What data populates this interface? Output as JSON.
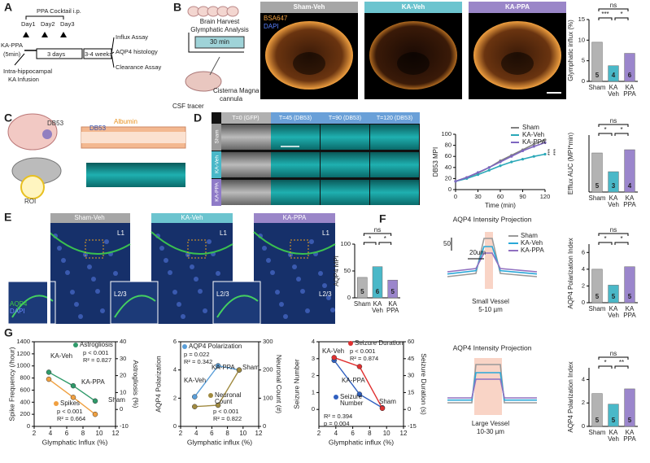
{
  "panels": {
    "letters": [
      "A",
      "B",
      "C",
      "D",
      "E",
      "F",
      "G"
    ],
    "a": [
      "PPA Cocktail i.p.",
      "Day1",
      "Day2",
      "Day3",
      "KA-PPA",
      "(5min)",
      "3 days",
      "3-4 weeks",
      "Intra-hippocampal",
      "KA Infusion",
      "Influx Assay",
      "AQP4 histology",
      "Clearance Assay"
    ],
    "b": [
      "Brain Harvest",
      "Glymphatic Analysis",
      "30 min",
      "Cisterna Magna",
      "cannula",
      "CSF tracer",
      "Sham-Veh",
      "KA-Veh",
      "KA-PPA",
      "BSA647",
      "DAPI"
    ],
    "c": [
      "DB53",
      "DB53",
      "Albumin",
      "ROI"
    ],
    "d": [
      "T=0 (GFP)",
      "T=45 (DB53)",
      "T=90 (DB53)",
      "T=120 (DB53)",
      "Sham",
      "KA-Veh",
      "KA-PPA"
    ],
    "e": [
      "Sham-Veh",
      "KA-Veh",
      "KA-PPA",
      "L1",
      "L1",
      "L1",
      "L2/3",
      "L2/3",
      "L2/3",
      "AQP4",
      "DAPI"
    ],
    "f": [
      "AQP4 Intensity Projection",
      "50",
      "20um",
      "Sham",
      "KA-Veh",
      "KA-PPA",
      "Small Vessel",
      "5-10 µm",
      "AQP4 Intensity Projection",
      "Large Vessel",
      "10-30 µm"
    ]
  },
  "chart_data": [
    {
      "type": "bar",
      "ylabel": "Glymphatic influx (%)",
      "categories": [
        "Sham",
        "KA Veh",
        "KA PPA"
      ],
      "values": [
        9.5,
        3.8,
        6.8
      ],
      "n_labels": [
        "5",
        "4",
        "6"
      ],
      "colors": [
        "#b3b3b3",
        "#4ab8c8",
        "#9b86cc"
      ],
      "ylim": [
        0,
        15
      ],
      "yticks": [
        0,
        5,
        10,
        15
      ],
      "significance": [
        "ns",
        "***",
        "*"
      ]
    },
    {
      "type": "line",
      "ylabel": "DB53 MPI",
      "xlabel": "Time (min)",
      "x": [
        0,
        15,
        30,
        45,
        60,
        75,
        90,
        105,
        120
      ],
      "series": [
        {
          "name": "Sham",
          "color": "#808080",
          "values": [
            15,
            22,
            30,
            40,
            52,
            62,
            72,
            82,
            90
          ]
        },
        {
          "name": "KA-Veh",
          "color": "#2aa8b8",
          "values": [
            15,
            20,
            27,
            35,
            43,
            50,
            55,
            60,
            64
          ]
        },
        {
          "name": "KA-PPA",
          "color": "#7e66c0",
          "values": [
            15,
            22,
            31,
            40,
            50,
            60,
            70,
            78,
            85
          ]
        }
      ],
      "xlim": [
        0,
        120
      ],
      "xticks": [
        0,
        30,
        60,
        90,
        120
      ],
      "ylim": [
        0,
        100
      ],
      "yticks": [
        0,
        20,
        40,
        60,
        80,
        100
      ],
      "significance": [
        "***",
        "***"
      ]
    },
    {
      "type": "bar",
      "ylabel": "Efflux AUC (MPI*min)",
      "categories": [
        "Sham",
        "KA Veh",
        "KA PPA"
      ],
      "values": [
        4800,
        2500,
        5200
      ],
      "n_labels": [
        "5",
        "3",
        "4"
      ],
      "colors": [
        "#b3b3b3",
        "#4ab8c8",
        "#9b86cc"
      ],
      "ylim": [
        0,
        7000
      ],
      "significance": [
        "ns",
        "*",
        "*"
      ]
    },
    {
      "type": "bar",
      "ylabel": "AQP4 MPI",
      "categories": [
        "Sham",
        "KA Veh",
        "KA PPA"
      ],
      "values": [
        38,
        58,
        33
      ],
      "n_labels": [
        "5",
        "6",
        "5"
      ],
      "colors": [
        "#b3b3b3",
        "#4ab8c8",
        "#9b86cc"
      ],
      "ylim": [
        0,
        100
      ],
      "yticks": [
        0,
        50,
        100
      ],
      "significance": [
        "ns",
        "*",
        "*"
      ]
    },
    {
      "type": "bar",
      "ylabel": "AQP4 Polarization Index",
      "categories": [
        "Sham",
        "KA Veh",
        "KA PPA"
      ],
      "values": [
        4.0,
        2.1,
        4.3
      ],
      "n_labels": [
        "5",
        "5",
        "5"
      ],
      "colors": [
        "#b3b3b3",
        "#4ab8c8",
        "#9b86cc"
      ],
      "ylim": [
        0,
        7
      ],
      "yticks": [
        0,
        2,
        4,
        6
      ],
      "significance": [
        "ns",
        "*",
        "*"
      ]
    },
    {
      "type": "bar",
      "ylabel": "AQP4 Polarization Index",
      "categories": [
        "Sham",
        "KA Veh",
        "KA PPA"
      ],
      "values": [
        2.8,
        1.9,
        3.2
      ],
      "n_labels": [
        "5",
        "5",
        "5"
      ],
      "colors": [
        "#b3b3b3",
        "#4ab8c8",
        "#9b86cc"
      ],
      "ylim": [
        0,
        5
      ],
      "yticks": [
        0,
        2,
        4
      ],
      "significance": [
        "ns",
        "*",
        "**"
      ]
    },
    {
      "type": "scatter",
      "xlabel": "Glymphatic Influx (%)",
      "ylabel": "Spike Frequency (/hour)",
      "y2label": "Astrogliosis (%)",
      "point_labels": [
        "KA-Veh",
        "KA-PPA",
        "Sham"
      ],
      "x": [
        3.8,
        6.8,
        9.5
      ],
      "series": [
        {
          "name": "Spikes",
          "color": "#f0a040",
          "axis": "y",
          "values": [
            780,
            480,
            200
          ],
          "stats": [
            "p < 0.001",
            "R² = 0.664"
          ]
        },
        {
          "name": "Astrogliosis",
          "color": "#2f9a6a",
          "axis": "y2",
          "values": [
            22,
            14,
            5
          ],
          "stats": [
            "p < 0.001",
            "R² = 0.827"
          ]
        }
      ],
      "xlim": [
        2,
        12
      ],
      "xticks": [
        2,
        4,
        6,
        8,
        10,
        12
      ],
      "ylim": [
        0,
        1400
      ],
      "yticks": [
        0,
        200,
        400,
        600,
        800,
        1000,
        1200,
        1400
      ],
      "y2lim": [
        -10,
        40
      ],
      "y2ticks": [
        -10,
        0,
        10,
        20,
        30,
        40
      ]
    },
    {
      "type": "scatter",
      "xlabel": "Glymphatic influx (%)",
      "ylabel": "AQP4 Polarization",
      "y2label": "Neuronal Count (#)",
      "point_labels": [
        "KA-Veh",
        "KA-PPA",
        "Sham"
      ],
      "x": [
        3.8,
        6.8,
        9.5
      ],
      "series": [
        {
          "name": "AQP4 Polarization",
          "color": "#5a9ed8",
          "axis": "y",
          "values": [
            2.1,
            4.3,
            4.0
          ],
          "stats": [
            "p = 0.022",
            "R² = 0.342"
          ]
        },
        {
          "name": "Neuronal Count",
          "color": "#a08a40",
          "axis": "y2",
          "values": [
            70,
            75,
            200
          ],
          "stats": [
            "p < 0.001",
            "R² = 0.822"
          ]
        }
      ],
      "xlim": [
        2,
        12
      ],
      "xticks": [
        2,
        4,
        6,
        8,
        10,
        12
      ],
      "ylim": [
        0,
        6
      ],
      "yticks": [
        0,
        2,
        4,
        6
      ],
      "y2lim": [
        0,
        300
      ],
      "y2ticks": [
        0,
        100,
        200,
        300
      ]
    },
    {
      "type": "scatter",
      "xlabel": "Glymphatic influx (%)",
      "ylabel": "Seizure Number",
      "y2label": "Seizure Duration (s)",
      "point_labels": [
        "KA-Veh",
        "KA-PPA",
        "Sham"
      ],
      "x": [
        3.8,
        6.8,
        9.5
      ],
      "series": [
        {
          "name": "Seizure Number",
          "color": "#3060c0",
          "axis": "y",
          "values": [
            2.9,
            0.9,
            0.1
          ],
          "stats": [
            "R² = 0.394",
            "p = 0.004"
          ]
        },
        {
          "name": "Seizure Duration",
          "color": "#e03030",
          "axis": "y2",
          "values": [
            46,
            38,
            1
          ],
          "stats": [
            "p < 0.001",
            "R² = 0.874"
          ]
        }
      ],
      "xlim": [
        2,
        12
      ],
      "xticks": [
        2,
        4,
        6,
        8,
        10,
        12
      ],
      "ylim": [
        -1,
        4
      ],
      "yticks": [
        0,
        1,
        2,
        3,
        4
      ],
      "y2lim": [
        -15,
        60
      ],
      "y2ticks": [
        -15,
        0,
        15,
        30,
        45,
        60
      ]
    }
  ]
}
